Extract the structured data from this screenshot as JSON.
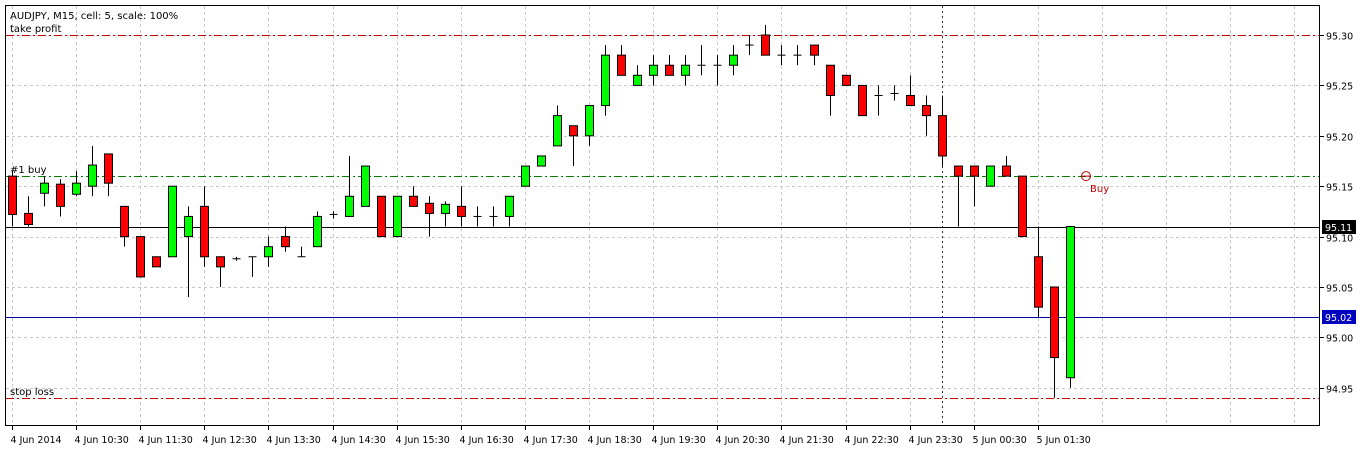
{
  "header": {
    "title": "AUDJPY, M15, cell: 5, scale: 100%"
  },
  "colors": {
    "background": "#ffffff",
    "grid": "#c8c8c8",
    "frame": "#000000",
    "bull": "#00ff00",
    "bear": "#ff0000",
    "candle_outline": "#000000",
    "take_profit_line": "#c00000",
    "stop_loss_line": "#c00000",
    "order_line": "#008000",
    "current_price_line": "#000000",
    "blue_line": "#0000a0",
    "blue_badge": "#0000c0",
    "black_badge": "#000000",
    "buy_marker": "#c00000"
  },
  "chart_data": {
    "type": "candlestick",
    "symbol": "AUDJPY",
    "timeframe": "M15",
    "title": "AUDJPY, M15, cell: 5, scale: 100%",
    "ylim": [
      94.898,
      95.32
    ],
    "grid": true,
    "y_ticks": [
      95.3,
      95.25,
      95.2,
      95.15,
      95.1,
      95.05,
      95.0,
      94.95
    ],
    "x_tick_labels": [
      "4 Jun 2014",
      "4 Jun 10:30",
      "4 Jun 11:30",
      "4 Jun 12:30",
      "4 Jun 13:30",
      "4 Jun 14:30",
      "4 Jun 15:30",
      "4 Jun 16:30",
      "4 Jun 17:30",
      "4 Jun 18:30",
      "4 Jun 19:30",
      "4 Jun 20:30",
      "4 Jun 21:30",
      "4 Jun 22:30",
      "4 Jun 23:30",
      "5 Jun 00:30",
      "5 Jun 01:30"
    ],
    "x_tick_positions": [
      0,
      4,
      8,
      12,
      16,
      20,
      24,
      28,
      32,
      36,
      40,
      44,
      48,
      52,
      56,
      60,
      64
    ],
    "candles": [
      {
        "o": 95.16,
        "h": 95.165,
        "l": 95.11,
        "c": 95.122
      },
      {
        "o": 95.123,
        "h": 95.14,
        "l": 95.11,
        "c": 95.112
      },
      {
        "o": 95.143,
        "h": 95.16,
        "l": 95.13,
        "c": 95.153
      },
      {
        "o": 95.152,
        "h": 95.157,
        "l": 95.12,
        "c": 95.13
      },
      {
        "o": 95.142,
        "h": 95.165,
        "l": 95.14,
        "c": 95.153
      },
      {
        "o": 95.15,
        "h": 95.19,
        "l": 95.14,
        "c": 95.171
      },
      {
        "o": 95.182,
        "h": 95.18,
        "l": 95.14,
        "c": 95.153
      },
      {
        "o": 95.13,
        "h": 95.13,
        "l": 95.09,
        "c": 95.1
      },
      {
        "o": 95.1,
        "h": 95.1,
        "l": 95.06,
        "c": 95.06
      },
      {
        "o": 95.08,
        "h": 95.08,
        "l": 95.07,
        "c": 95.07
      },
      {
        "o": 95.08,
        "h": 95.15,
        "l": 95.08,
        "c": 95.15
      },
      {
        "o": 95.1,
        "h": 95.13,
        "l": 95.04,
        "c": 95.12
      },
      {
        "o": 95.13,
        "h": 95.15,
        "l": 95.07,
        "c": 95.08
      },
      {
        "o": 95.08,
        "h": 95.08,
        "l": 95.05,
        "c": 95.07
      },
      {
        "o": 95.078,
        "h": 95.08,
        "l": 95.076,
        "c": 95.078
      },
      {
        "o": 95.08,
        "h": 95.08,
        "l": 95.06,
        "c": 95.08
      },
      {
        "o": 95.08,
        "h": 95.1,
        "l": 95.07,
        "c": 95.09
      },
      {
        "o": 95.1,
        "h": 95.11,
        "l": 95.085,
        "c": 95.09
      },
      {
        "o": 95.08,
        "h": 95.09,
        "l": 95.08,
        "c": 95.08
      },
      {
        "o": 95.09,
        "h": 95.125,
        "l": 95.09,
        "c": 95.12
      },
      {
        "o": 95.122,
        "h": 95.125,
        "l": 95.118,
        "c": 95.122
      },
      {
        "o": 95.12,
        "h": 95.18,
        "l": 95.12,
        "c": 95.14
      },
      {
        "o": 95.13,
        "h": 95.17,
        "l": 95.13,
        "c": 95.17
      },
      {
        "o": 95.14,
        "h": 95.14,
        "l": 95.1,
        "c": 95.1
      },
      {
        "o": 95.1,
        "h": 95.14,
        "l": 95.1,
        "c": 95.14
      },
      {
        "o": 95.14,
        "h": 95.15,
        "l": 95.13,
        "c": 95.13
      },
      {
        "o": 95.133,
        "h": 95.14,
        "l": 95.1,
        "c": 95.123
      },
      {
        "o": 95.123,
        "h": 95.135,
        "l": 95.11,
        "c": 95.132
      },
      {
        "o": 95.13,
        "h": 95.15,
        "l": 95.11,
        "c": 95.12
      },
      {
        "o": 95.12,
        "h": 95.13,
        "l": 95.11,
        "c": 95.12
      },
      {
        "o": 95.12,
        "h": 95.13,
        "l": 95.11,
        "c": 95.12
      },
      {
        "o": 95.12,
        "h": 95.14,
        "l": 95.11,
        "c": 95.14
      },
      {
        "o": 95.15,
        "h": 95.17,
        "l": 95.15,
        "c": 95.17
      },
      {
        "o": 95.17,
        "h": 95.18,
        "l": 95.17,
        "c": 95.18
      },
      {
        "o": 95.19,
        "h": 95.23,
        "l": 95.19,
        "c": 95.22
      },
      {
        "o": 95.21,
        "h": 95.21,
        "l": 95.17,
        "c": 95.2
      },
      {
        "o": 95.2,
        "h": 95.23,
        "l": 95.19,
        "c": 95.23
      },
      {
        "o": 95.23,
        "h": 95.29,
        "l": 95.22,
        "c": 95.28
      },
      {
        "o": 95.28,
        "h": 95.29,
        "l": 95.26,
        "c": 95.26
      },
      {
        "o": 95.25,
        "h": 95.27,
        "l": 95.25,
        "c": 95.26
      },
      {
        "o": 95.26,
        "h": 95.28,
        "l": 95.25,
        "c": 95.27
      },
      {
        "o": 95.27,
        "h": 95.28,
        "l": 95.26,
        "c": 95.26
      },
      {
        "o": 95.26,
        "h": 95.28,
        "l": 95.25,
        "c": 95.27
      },
      {
        "o": 95.27,
        "h": 95.29,
        "l": 95.26,
        "c": 95.27
      },
      {
        "o": 95.27,
        "h": 95.28,
        "l": 95.25,
        "c": 95.27
      },
      {
        "o": 95.27,
        "h": 95.29,
        "l": 95.26,
        "c": 95.28
      },
      {
        "o": 95.29,
        "h": 95.3,
        "l": 95.28,
        "c": 95.29
      },
      {
        "o": 95.3,
        "h": 95.31,
        "l": 95.28,
        "c": 95.28
      },
      {
        "o": 95.28,
        "h": 95.29,
        "l": 95.27,
        "c": 95.28
      },
      {
        "o": 95.28,
        "h": 95.29,
        "l": 95.27,
        "c": 95.28
      },
      {
        "o": 95.29,
        "h": 95.29,
        "l": 95.27,
        "c": 95.28
      },
      {
        "o": 95.27,
        "h": 95.27,
        "l": 95.22,
        "c": 95.24
      },
      {
        "o": 95.26,
        "h": 95.26,
        "l": 95.25,
        "c": 95.25
      },
      {
        "o": 95.25,
        "h": 95.25,
        "l": 95.22,
        "c": 95.22
      },
      {
        "o": 95.24,
        "h": 95.25,
        "l": 95.22,
        "c": 95.24
      },
      {
        "o": 95.242,
        "h": 95.25,
        "l": 95.235,
        "c": 95.242
      },
      {
        "o": 95.24,
        "h": 95.26,
        "l": 95.23,
        "c": 95.23
      },
      {
        "o": 95.23,
        "h": 95.24,
        "l": 95.2,
        "c": 95.22
      },
      {
        "o": 95.22,
        "h": 95.24,
        "l": 95.17,
        "c": 95.18
      },
      {
        "o": 95.17,
        "h": 95.17,
        "l": 95.11,
        "c": 95.16
      },
      {
        "o": 95.17,
        "h": 95.17,
        "l": 95.13,
        "c": 95.16
      },
      {
        "o": 95.15,
        "h": 95.17,
        "l": 95.15,
        "c": 95.17
      },
      {
        "o": 95.17,
        "h": 95.18,
        "l": 95.16,
        "c": 95.16
      },
      {
        "o": 95.16,
        "h": 95.16,
        "l": 95.1,
        "c": 95.1
      },
      {
        "o": 95.08,
        "h": 95.11,
        "l": 95.02,
        "c": 95.03
      },
      {
        "o": 95.05,
        "h": 95.05,
        "l": 94.94,
        "c": 94.98
      },
      {
        "o": 94.96,
        "h": 95.11,
        "l": 94.95,
        "c": 95.11
      }
    ],
    "levels": [
      {
        "name": "take profit",
        "label": "take profit",
        "value": 95.3,
        "style": "dash-dot",
        "color": "#c00000"
      },
      {
        "name": "order",
        "label": "#1 buy",
        "value": 95.16,
        "style": "dash-dot",
        "color": "#008000"
      },
      {
        "name": "current price",
        "label": "95.11",
        "value": 95.11,
        "style": "solid",
        "color": "#000000",
        "badge": "#000000"
      },
      {
        "name": "blue line",
        "label": "95.02",
        "value": 95.02,
        "style": "solid",
        "color": "#0000a0",
        "badge": "#0000c0"
      },
      {
        "name": "stop loss",
        "label": "stop loss",
        "value": 94.94,
        "style": "dash-dot",
        "color": "#c00000"
      }
    ],
    "buy_marker": {
      "label": "Buy",
      "index": 67,
      "value": 95.16
    },
    "vertical_marker_index": 58
  }
}
